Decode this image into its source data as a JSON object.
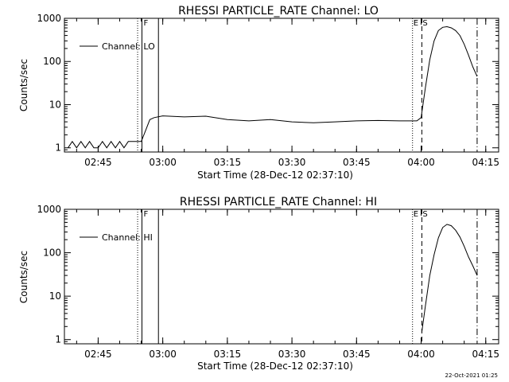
{
  "footer_timestamp": "22-Oct-2021 01:25",
  "chart_data": [
    {
      "type": "line",
      "title": "RHESSI PARTICLE_RATE Channel: LO",
      "xlabel": "Start Time (28-Dec-12 02:37:10)",
      "ylabel": "Counts/sec",
      "yscale": "log",
      "ylim": [
        0.8,
        1000
      ],
      "xlim": [
        "02:37:10",
        "04:18:00"
      ],
      "x_ticks": [
        "02:45",
        "03:00",
        "03:15",
        "03:30",
        "03:45",
        "04:00",
        "04:15"
      ],
      "y_ticks": [
        "1",
        "10",
        "100",
        "1000"
      ],
      "legend_label": "Channel: LO",
      "legend_position": "top-left",
      "marker_labels": [
        "F",
        "E",
        "S"
      ],
      "series": [
        {
          "x": [
            "02:38",
            "02:39",
            "02:40",
            "02:41",
            "02:42",
            "02:43",
            "02:44",
            "02:45",
            "02:46",
            "02:47",
            "02:48",
            "02:49",
            "02:50",
            "02:51",
            "02:52",
            "02:53",
            "02:54",
            "02:55",
            "02:56",
            "02:57",
            "02:58",
            "03:00",
            "03:05",
            "03:10",
            "03:15",
            "03:20",
            "03:25",
            "03:30",
            "03:35",
            "03:40",
            "03:45",
            "03:50",
            "03:55",
            "03:58",
            "03:59",
            "04:00",
            "04:01",
            "04:02",
            "04:03",
            "04:04",
            "04:05",
            "04:06",
            "04:07",
            "04:08",
            "04:09",
            "04:10",
            "04:11",
            "04:12",
            "04:13"
          ],
          "y": [
            1,
            1.4,
            1,
            1.4,
            1,
            1.4,
            1,
            1,
            1.4,
            1,
            1.4,
            1,
            1.4,
            1,
            1.4,
            1.4,
            1.4,
            1.4,
            2.5,
            4.5,
            5,
            5.5,
            5.2,
            5.4,
            4.5,
            4.2,
            4.5,
            4.0,
            3.8,
            4.0,
            4.2,
            4.3,
            4.2,
            4.2,
            4.2,
            5,
            25,
            110,
            300,
            520,
            620,
            640,
            600,
            520,
            400,
            250,
            140,
            75,
            45
          ]
        }
      ],
      "vertical_markers": [
        {
          "time": "02:54:10",
          "style": "dotted"
        },
        {
          "time": "02:55:10",
          "style": "solid"
        },
        {
          "time": "02:59:00",
          "style": "solid"
        },
        {
          "time": "03:58:00",
          "style": "dotted"
        },
        {
          "time": "04:00:10",
          "style": "dashed"
        },
        {
          "time": "04:13:00",
          "style": "dashdot"
        }
      ]
    },
    {
      "type": "line",
      "title": "RHESSI PARTICLE_RATE Channel: HI",
      "xlabel": "Start Time (28-Dec-12 02:37:10)",
      "ylabel": "Counts/sec",
      "yscale": "log",
      "ylim": [
        0.8,
        1000
      ],
      "xlim": [
        "02:37:10",
        "04:18:00"
      ],
      "x_ticks": [
        "02:45",
        "03:00",
        "03:15",
        "03:30",
        "03:45",
        "04:00",
        "04:15"
      ],
      "y_ticks": [
        "1",
        "10",
        "100",
        "1000"
      ],
      "legend_label": "Channel: HI",
      "legend_position": "top-left",
      "marker_labels": [
        "F",
        "E",
        "S"
      ],
      "series": [
        {
          "x": [
            "04:00:10",
            "04:01",
            "04:02",
            "04:03",
            "04:04",
            "04:05",
            "04:06",
            "04:07",
            "04:08",
            "04:09",
            "04:10",
            "04:11",
            "04:12",
            "04:13"
          ],
          "y": [
            1.5,
            6,
            30,
            90,
            220,
            380,
            450,
            420,
            330,
            230,
            140,
            80,
            50,
            30
          ]
        }
      ],
      "vertical_markers": [
        {
          "time": "02:54:10",
          "style": "dotted"
        },
        {
          "time": "02:55:10",
          "style": "solid"
        },
        {
          "time": "02:59:00",
          "style": "solid"
        },
        {
          "time": "03:58:00",
          "style": "dotted"
        },
        {
          "time": "04:00:10",
          "style": "dashed"
        },
        {
          "time": "04:13:00",
          "style": "dashdot"
        }
      ]
    }
  ]
}
